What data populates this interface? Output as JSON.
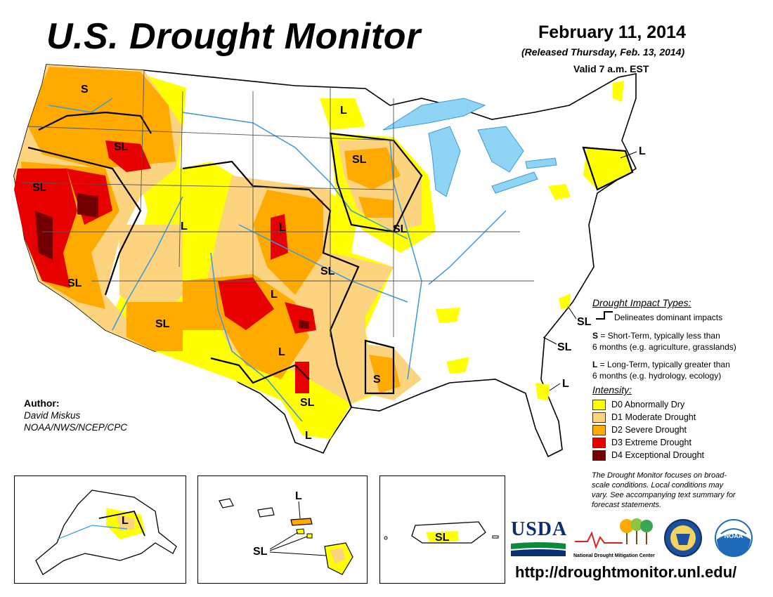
{
  "header": {
    "title": "U.S. Drought Monitor",
    "date": "February 11, 2014",
    "released": "(Released Thursday, Feb. 13, 2014)",
    "valid": "Valid 7 a.m. EST"
  },
  "map_labels": {
    "wa_s": "S",
    "id_sl": "SL",
    "ca_sl": "SL",
    "ca_sl2": "SL",
    "ut_l": "L",
    "az_sl": "SL",
    "co_l": "L",
    "nm_l": "L",
    "ks_sl": "SL",
    "tx_l": "L",
    "tx_sl": "SL",
    "tx_l2": "L",
    "la_s": "S",
    "nd_l": "L",
    "sd_sl": "SL",
    "ia_sl": "SL",
    "ne_l": "L",
    "nc_sl": "SL",
    "sc_sl": "SL",
    "fl_l": "L"
  },
  "insets": {
    "alaska_l": "L",
    "hawaii_l": "L",
    "hawaii_sl": "SL",
    "pr_sl": "SL"
  },
  "impact_types": {
    "title": "Drought Impact Types:",
    "delineates": "Delineates dominant impacts",
    "s_key": "S",
    "s_line1": " = Short-Term, typically less than",
    "s_line2": "6 months (e.g. agriculture, grasslands)",
    "l_key": "L",
    "l_line1": " = Long-Term, typically greater than",
    "l_line2": "6 months (e.g. hydrology, ecology)"
  },
  "intensity": {
    "title": "Intensity:",
    "items": [
      {
        "label": "D0 Abnormally Dry",
        "color": "#ffff00"
      },
      {
        "label": "D1 Moderate Drought",
        "color": "#fcd37f"
      },
      {
        "label": "D2 Severe Drought",
        "color": "#ffaa00"
      },
      {
        "label": "D3 Extreme Drought",
        "color": "#e60000"
      },
      {
        "label": "D4 Exceptional Drought",
        "color": "#730000"
      }
    ]
  },
  "author": {
    "heading": "Author:",
    "name": "David Miskus",
    "org": "NOAA/NWS/NCEP/CPC"
  },
  "note": {
    "line1": "The Drought Monitor focuses on broad-",
    "line2": "scale conditions. Local conditions may",
    "line3": "vary. See accompanying text summary for",
    "line4": "forecast statements."
  },
  "logos": {
    "usda": "USDA",
    "ndmc": "National Drought Mitigation Center",
    "noaa": "NOAA"
  },
  "url": "http://droughtmonitor.unl.edu/",
  "colors": {
    "water": "#8fd3f5",
    "river": "#3b9ad8"
  }
}
